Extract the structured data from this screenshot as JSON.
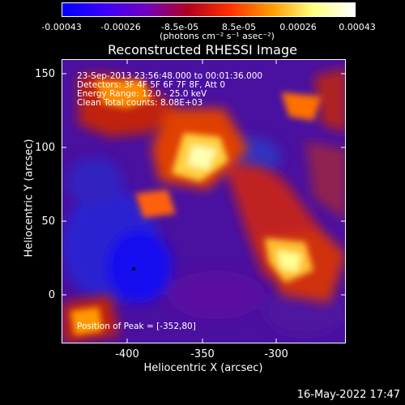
{
  "colorbar": {
    "ticks": [
      "-0.00043",
      "-0.00026",
      "-8.5e-05",
      "8.5e-05",
      "0.00026",
      "0.00043"
    ],
    "unit": "(photons cm⁻² s⁻¹ asec⁻²)",
    "colors": [
      "#0000ff",
      "#3a00ff",
      "#7000c0",
      "#b00020",
      "#ff3000",
      "#ff9a00",
      "#ffff80",
      "#ffffff"
    ]
  },
  "title": "Reconstructed RHESSI Image",
  "info": {
    "time": "23-Sep-2013 23:56:48.000 to 00:01:36.000",
    "detectors": "Detectors: 3F 4F 5F 6F 7F 8F, Att 0",
    "energy": "Energy Range: 12.0 - 25.0 keV",
    "clean": "Clean     Total counts: 8.08E+03",
    "peak": "Position of Peak = [-352,80]"
  },
  "axes": {
    "xlabel": "Heliocentric X (arcsec)",
    "ylabel": "Heliocentric Y (arcsec)",
    "xticks": [
      "-400",
      "-350",
      "-300"
    ],
    "yticks": [
      "150",
      "100",
      "50",
      "0"
    ]
  },
  "timestamp": "16-May-2022 17:47"
}
